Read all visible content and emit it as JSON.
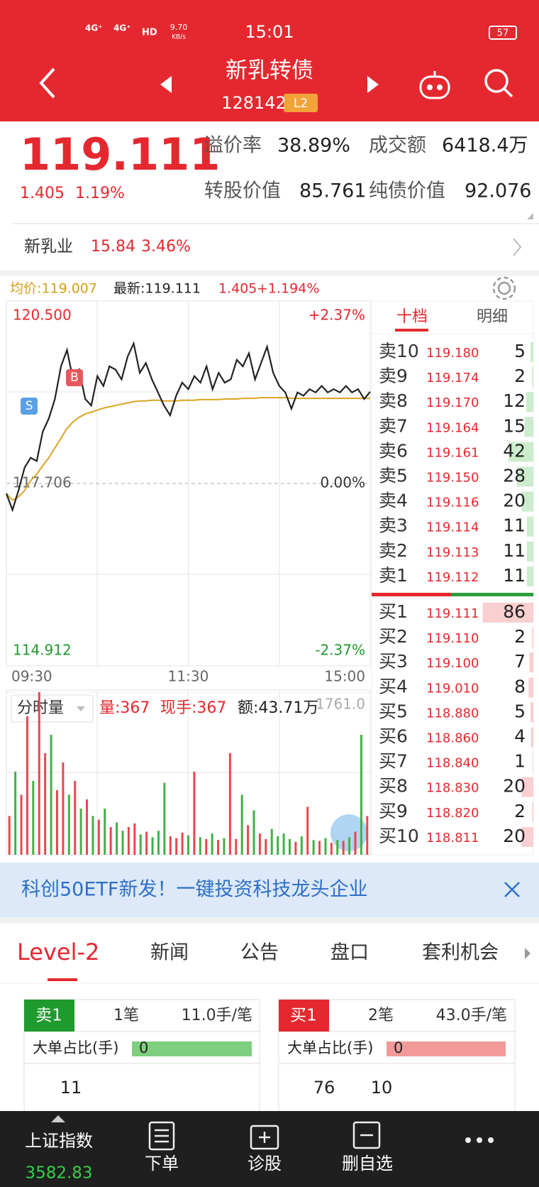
{
  "status_bar": {
    "network_1": "4G⁺",
    "network_2": "4G⁺",
    "hd": "HD",
    "speed": "9.70",
    "speed_unit": "KB/s",
    "time": "15:01",
    "battery": "57"
  },
  "header": {
    "title": "新乳转债",
    "code": "128142",
    "badge": "L2"
  },
  "quote": {
    "price": "119.111",
    "change": "1.405",
    "change_pct": "1.19%",
    "premium_label": "溢价率",
    "premium": "38.89%",
    "turnover_label": "成交额",
    "turnover": "6418.4万",
    "conv_value_label": "转股价值",
    "conv_value": "85.761",
    "bond_value_label": "纯债价值",
    "bond_value": "92.076"
  },
  "stock": {
    "name": "新乳业",
    "price": "15.84",
    "change_pct": "3.46%"
  },
  "chart_data": [
    {
      "type": "line",
      "avg_label": "均价:119.007",
      "latest_label": "最新:119.111",
      "change": "1.405",
      "change_pct": "+1.194%",
      "markers": {
        "buy": "B",
        "sell": "S"
      },
      "xlim": [
        0,
        240
      ],
      "xticks": [
        {
          "value": 0,
          "label": "09:30"
        },
        {
          "value": 120,
          "label": "11:30"
        },
        {
          "value": 240,
          "label": "15:00"
        }
      ],
      "ylim": [
        114.912,
        120.5
      ],
      "yticks": [
        {
          "value": 120.5,
          "label": "120.500"
        },
        {
          "value": 117.706,
          "label": "117.706"
        },
        {
          "value": 114.912,
          "label": "114.912"
        }
      ],
      "y2lim": [
        -2.37,
        2.37
      ],
      "y2ticks": [
        {
          "value": 2.37,
          "label": "+2.37%"
        },
        {
          "value": 0,
          "label": "0.00%"
        },
        {
          "value": -2.37,
          "label": "-2.37%"
        }
      ],
      "x": [
        0,
        4,
        8,
        12,
        16,
        20,
        24,
        28,
        32,
        36,
        40,
        44,
        48,
        52,
        56,
        60,
        64,
        68,
        72,
        76,
        80,
        84,
        88,
        92,
        96,
        100,
        104,
        108,
        112,
        116,
        120,
        124,
        128,
        132,
        136,
        140,
        144,
        148,
        152,
        156,
        160,
        164,
        168,
        172,
        176,
        180,
        184,
        188,
        192,
        196,
        200,
        204,
        208,
        212,
        216,
        220,
        224,
        228,
        232,
        236,
        240
      ],
      "series": [
        {
          "color": "#222222",
          "values": [
            117.55,
            117.3,
            117.6,
            117.95,
            118.1,
            118.05,
            118.5,
            118.7,
            119.0,
            119.5,
            119.75,
            119.3,
            119.45,
            119.0,
            118.9,
            119.35,
            119.2,
            119.5,
            119.45,
            119.3,
            119.65,
            119.85,
            119.4,
            119.55,
            119.3,
            119.1,
            118.9,
            118.75,
            119.05,
            119.25,
            119.15,
            119.35,
            119.25,
            119.5,
            119.15,
            119.4,
            119.25,
            119.3,
            119.6,
            119.5,
            119.7,
            119.3,
            119.55,
            119.8,
            119.4,
            119.2,
            119.1,
            118.85,
            119.1,
            119.05,
            119.15,
            119.1,
            119.2,
            119.1,
            119.15,
            119.1,
            119.2,
            119.1,
            119.15,
            119.0,
            119.111
          ]
        },
        {
          "color": "#d9a521",
          "values": [
            117.55,
            117.45,
            117.5,
            117.6,
            117.75,
            117.85,
            117.98,
            118.1,
            118.25,
            118.4,
            118.55,
            118.65,
            118.72,
            118.77,
            118.8,
            118.83,
            118.86,
            118.88,
            118.9,
            118.92,
            118.94,
            118.96,
            118.97,
            118.97,
            118.98,
            118.98,
            118.97,
            118.97,
            118.97,
            118.98,
            118.98,
            118.98,
            118.99,
            118.99,
            118.99,
            118.99,
            119.0,
            119.0,
            119.0,
            119.01,
            119.01,
            119.01,
            119.02,
            119.02,
            119.02,
            119.02,
            119.02,
            119.01,
            119.01,
            119.01,
            119.01,
            119.01,
            119.01,
            119.01,
            119.01,
            119.01,
            119.01,
            119.01,
            119.01,
            119.01,
            119.007
          ]
        }
      ]
    },
    {
      "type": "bar",
      "selector": "分时量",
      "volume_label": "量:367",
      "hand_label": "现手:367",
      "amount_label": "额:43.71万",
      "ylim": [
        0,
        1761.0
      ],
      "yticks": [
        {
          "value": 1761.0,
          "label": "1761.0"
        }
      ],
      "values": [
        420,
        900,
        650,
        1500,
        800,
        1761,
        1100,
        1300,
        700,
        1000,
        650,
        800,
        500,
        600,
        420,
        380,
        500,
        300,
        350,
        260,
        300,
        340,
        220,
        250,
        190,
        260,
        780,
        200,
        180,
        240,
        210,
        900,
        190,
        170,
        230,
        160,
        180,
        1100,
        170,
        650,
        320,
        480,
        230,
        170,
        280,
        200,
        230,
        170,
        140,
        200,
        520,
        160,
        150,
        180,
        130,
        160,
        150,
        190,
        250,
        1300,
        420
      ],
      "colors": [
        "#e8474d",
        "#43b047",
        "#e8474d",
        "#e8474d",
        "#43b047",
        "#e8474d",
        "#e8474d",
        "#43b047",
        "#e8474d",
        "#e8474d",
        "#43b047",
        "#e8474d",
        "#43b047",
        "#e8474d",
        "#43b047",
        "#e8474d",
        "#43b047",
        "#e8474d",
        "#43b047",
        "#43b047",
        "#e8474d",
        "#e8474d",
        "#43b047",
        "#e8474d",
        "#43b047",
        "#43b047",
        "#43b047",
        "#e8474d",
        "#e8474d",
        "#e8474d",
        "#43b047",
        "#e8474d",
        "#43b047",
        "#e8474d",
        "#43b047",
        "#e8474d",
        "#43b047",
        "#e8474d",
        "#e8474d",
        "#43b047",
        "#e8474d",
        "#43b047",
        "#e8474d",
        "#e8474d",
        "#43b047",
        "#43b047",
        "#43b047",
        "#43b047",
        "#e8474d",
        "#43b047",
        "#e8474d",
        "#43b047",
        "#e8474d",
        "#43b047",
        "#e8474d",
        "#43b047",
        "#e8474d",
        "#43b047",
        "#e8474d",
        "#43b047",
        "#e8474d"
      ]
    }
  ],
  "order_book": {
    "tabs": [
      "十档",
      "明细"
    ],
    "asks": [
      {
        "label": "卖10",
        "price": "119.180",
        "qty": 5
      },
      {
        "label": "卖9",
        "price": "119.174",
        "qty": 2
      },
      {
        "label": "卖8",
        "price": "119.170",
        "qty": 12
      },
      {
        "label": "卖7",
        "price": "119.164",
        "qty": 15
      },
      {
        "label": "卖6",
        "price": "119.161",
        "qty": 42
      },
      {
        "label": "卖5",
        "price": "119.150",
        "qty": 28
      },
      {
        "label": "卖4",
        "price": "119.116",
        "qty": 20
      },
      {
        "label": "卖3",
        "price": "119.114",
        "qty": 11
      },
      {
        "label": "卖2",
        "price": "119.113",
        "qty": 11
      },
      {
        "label": "卖1",
        "price": "119.112",
        "qty": 11
      }
    ],
    "bids": [
      {
        "label": "买1",
        "price": "119.111",
        "qty": 86
      },
      {
        "label": "买2",
        "price": "119.110",
        "qty": 2
      },
      {
        "label": "买3",
        "price": "119.100",
        "qty": 7
      },
      {
        "label": "买4",
        "price": "119.010",
        "qty": 8
      },
      {
        "label": "买5",
        "price": "118.880",
        "qty": 5
      },
      {
        "label": "买6",
        "price": "118.860",
        "qty": 4
      },
      {
        "label": "买7",
        "price": "118.840",
        "qty": 1
      },
      {
        "label": "买8",
        "price": "118.830",
        "qty": 20
      },
      {
        "label": "买9",
        "price": "118.820",
        "qty": 2
      },
      {
        "label": "买10",
        "price": "118.811",
        "qty": 20
      }
    ]
  },
  "banner": {
    "text": "科创50ETF新发！一键投资科技龙头企业"
  },
  "tabs": [
    "Level-2",
    "新闻",
    "公告",
    "盘口",
    "套利机会"
  ],
  "level2": {
    "sell": {
      "side": "卖1",
      "count": "1笔",
      "avg": "11.0手/笔",
      "ratio_label": "大单占比(手)",
      "ratio": "0",
      "values": [
        "11"
      ]
    },
    "buy": {
      "side": "买1",
      "count": "2笔",
      "avg": "43.0手/笔",
      "ratio_label": "大单占比(手)",
      "ratio": "0",
      "values": [
        "76",
        "10"
      ]
    }
  },
  "bottom_nav": {
    "index_name": "上证指数",
    "index_value": "3582.83",
    "items": [
      "下单",
      "诊股",
      "删自选"
    ]
  }
}
